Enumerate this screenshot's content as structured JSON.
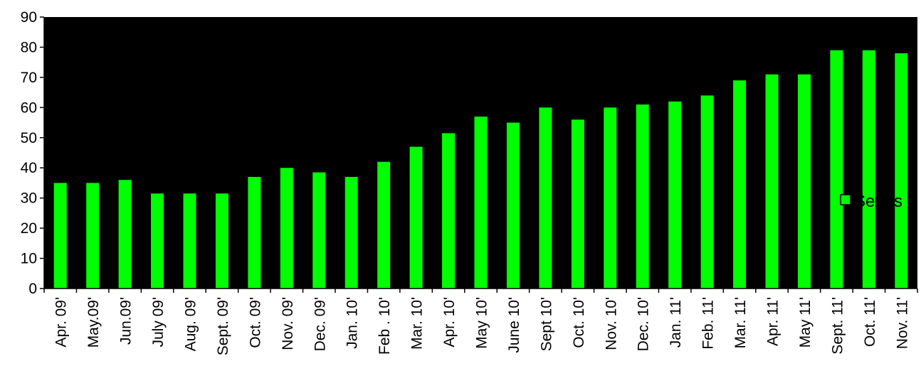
{
  "chart_data": {
    "type": "bar",
    "categories": [
      "Apr. 09'",
      "May.09'",
      "Jun.09'",
      "July 09'",
      "Aug. 09'",
      "Sept. 09'",
      "Oct. 09'",
      "Nov. 09'",
      "Dec. 09'",
      "Jan. 10'",
      "Feb . 10'",
      "Mar. 10'",
      "Apr. 10'",
      "May 10'",
      "June 10'",
      "Sept 10'",
      "Oct. 10'",
      "Nov. 10'",
      "Dec. 10'",
      "Jan. 11'",
      "Feb. 11'",
      "Mar. 11'",
      "Apr. 11'",
      "May 11'",
      "Sept. 11'",
      "Oct. 11'",
      "Nov. 11'"
    ],
    "series": [
      {
        "name": "Series",
        "values": [
          35,
          35,
          36,
          31.5,
          31.5,
          31.5,
          37,
          40,
          38.5,
          37,
          42,
          47,
          51.5,
          57,
          55,
          60,
          56,
          60,
          61,
          62,
          64,
          69,
          71,
          71,
          79,
          79,
          78
        ]
      }
    ],
    "ylim": [
      0,
      90
    ],
    "yticks": [
      0,
      10,
      20,
      30,
      40,
      50,
      60,
      70,
      80,
      90
    ],
    "xlabel": "",
    "ylabel": "",
    "title": "",
    "legend": "right",
    "grid": false
  },
  "colors": {
    "plot_background": "#000000",
    "bar": "#00ff00",
    "legend_marker": "#00ff00"
  },
  "legend": {
    "label": "Series"
  }
}
